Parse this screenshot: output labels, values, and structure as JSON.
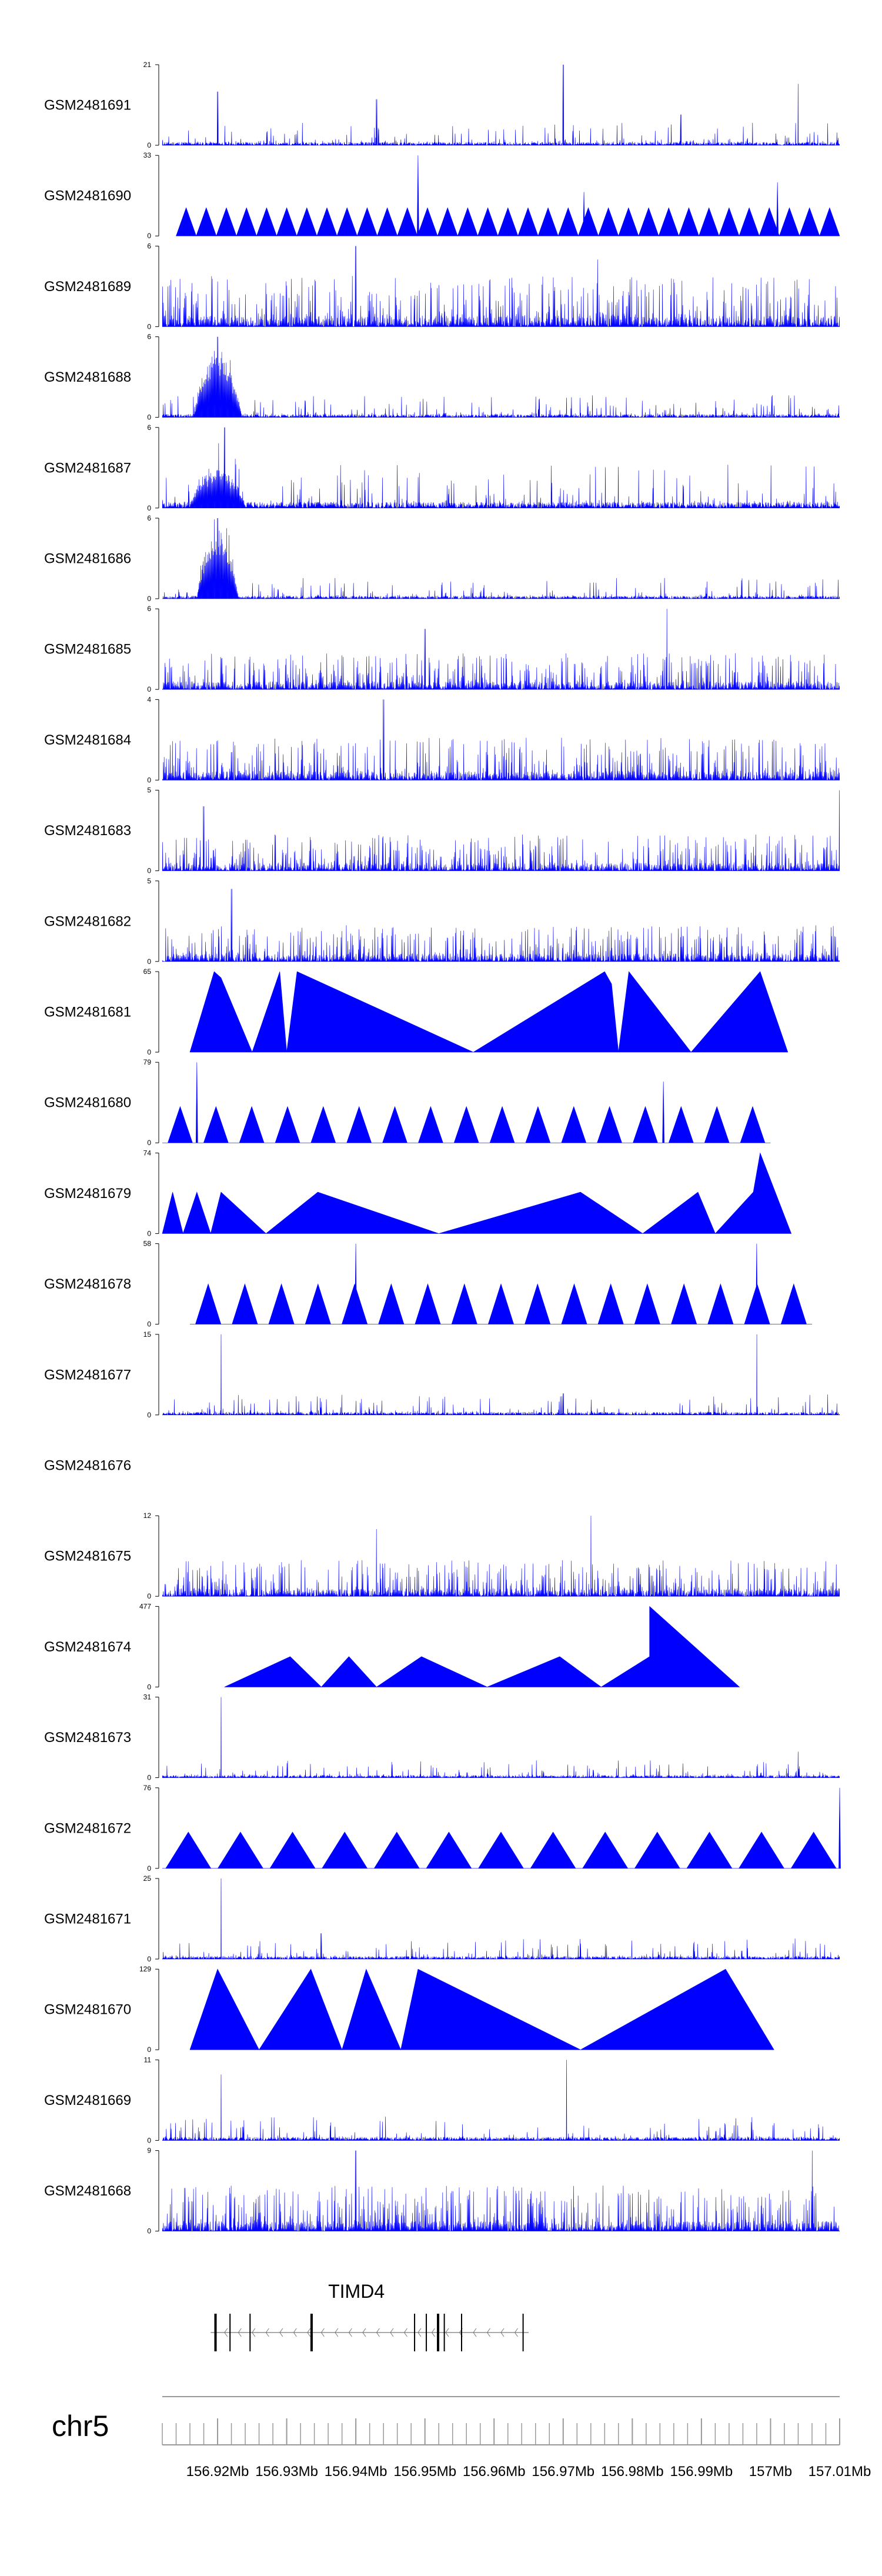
{
  "chart_data": {
    "type": "area",
    "title": "",
    "chromosome": "chr5",
    "x_range_mb": [
      156.912,
      157.01
    ],
    "fill_color": "#0000ff",
    "axis_color": "#000000",
    "tracks": [
      {
        "name": "GSM2481691",
        "ymax": "21",
        "ymin": "0",
        "style": "spiky",
        "seed": 11,
        "level": 0.13,
        "peaks": [
          {
            "x": 156.92,
            "v": 14
          },
          {
            "x": 156.943,
            "v": 12
          },
          {
            "x": 156.97,
            "v": 21
          },
          {
            "x": 156.987,
            "v": 8
          },
          {
            "x": 157.004,
            "v": 16
          }
        ]
      },
      {
        "name": "GSM2481690",
        "ymax": "33",
        "ymin": "0",
        "style": "tri",
        "tri": {
          "start": 156.914,
          "end": 157.01,
          "n": 33,
          "peak": 0.35
        },
        "peaks": [
          {
            "x": 156.949,
            "v": 33
          },
          {
            "x": 156.973,
            "v": 18
          },
          {
            "x": 157.001,
            "v": 22
          }
        ]
      },
      {
        "name": "GSM2481689",
        "ymax": "6",
        "ymin": "0",
        "style": "dense",
        "seed": 23,
        "level": 0.42,
        "peaks": [
          {
            "x": 156.94,
            "v": 6
          },
          {
            "x": 156.975,
            "v": 5
          }
        ]
      },
      {
        "name": "GSM2481688",
        "ymax": "6",
        "ymin": "0",
        "style": "spiky",
        "seed": 37,
        "level": 0.13,
        "hump": {
          "x": 156.92,
          "w": 0.0035,
          "h": 0.8
        },
        "peaks": [
          {
            "x": 156.92,
            "v": 6
          }
        ]
      },
      {
        "name": "GSM2481687",
        "ymax": "6",
        "ymin": "0",
        "style": "spiky",
        "seed": 41,
        "level": 0.25,
        "hump": {
          "x": 156.92,
          "w": 0.004,
          "h": 0.45
        },
        "peaks": [
          {
            "x": 156.921,
            "v": 6
          }
        ]
      },
      {
        "name": "GSM2481686",
        "ymax": "6",
        "ymin": "0",
        "style": "spiky",
        "seed": 53,
        "level": 0.12,
        "hump": {
          "x": 156.92,
          "w": 0.003,
          "h": 0.85
        },
        "peaks": [
          {
            "x": 156.92,
            "v": 6
          }
        ]
      },
      {
        "name": "GSM2481685",
        "ymax": "6",
        "ymin": "0",
        "style": "dense",
        "seed": 59,
        "level": 0.3,
        "peaks": [
          {
            "x": 156.985,
            "v": 6
          },
          {
            "x": 156.95,
            "v": 4.5
          }
        ]
      },
      {
        "name": "GSM2481684",
        "ymax": "4",
        "ymin": "0",
        "style": "dense",
        "seed": 61,
        "level": 0.35,
        "peaks": [
          {
            "x": 156.944,
            "v": 4
          }
        ]
      },
      {
        "name": "GSM2481683",
        "ymax": "5",
        "ymin": "0",
        "style": "dense",
        "seed": 67,
        "level": 0.3,
        "peaks": [
          {
            "x": 157.01,
            "v": 5
          },
          {
            "x": 156.918,
            "v": 4
          }
        ]
      },
      {
        "name": "GSM2481682",
        "ymax": "5",
        "ymin": "0",
        "style": "dense",
        "seed": 71,
        "level": 0.3,
        "peaks": [
          {
            "x": 156.922,
            "v": 4.5
          }
        ]
      },
      {
        "name": "GSM2481681",
        "ymax": "65",
        "ymin": "0",
        "style": "poly",
        "points": [
          [
            156.916,
            0
          ],
          [
            156.9195,
            65
          ],
          [
            156.9205,
            60
          ],
          [
            156.925,
            0
          ],
          [
            156.929,
            65
          ],
          [
            156.93,
            0
          ],
          [
            156.9315,
            65
          ],
          [
            156.957,
            0
          ],
          [
            156.976,
            65
          ],
          [
            156.977,
            55
          ],
          [
            156.978,
            0
          ],
          [
            156.9795,
            65
          ],
          [
            156.9885,
            0
          ],
          [
            156.9985,
            65
          ],
          [
            157.0025,
            0
          ]
        ]
      },
      {
        "name": "GSM2481680",
        "ymax": "79",
        "ymin": "0",
        "style": "tri",
        "tri": {
          "start": 156.912,
          "end": 157.0,
          "n": 17,
          "peak": 0.45,
          "gap": 0.0008
        },
        "peaks": [
          {
            "x": 156.917,
            "v": 79
          },
          {
            "x": 156.9845,
            "v": 60
          }
        ]
      },
      {
        "name": "GSM2481679",
        "ymax": "74",
        "ymin": "0",
        "style": "poly",
        "points": [
          [
            156.912,
            0
          ],
          [
            156.9135,
            38
          ],
          [
            156.915,
            0
          ],
          [
            156.917,
            38
          ],
          [
            156.919,
            0
          ],
          [
            156.9205,
            38
          ],
          [
            156.927,
            0
          ],
          [
            156.9345,
            38
          ],
          [
            156.952,
            0
          ],
          [
            156.9725,
            38
          ],
          [
            156.9815,
            0
          ],
          [
            156.9895,
            38
          ],
          [
            156.992,
            0
          ],
          [
            156.9975,
            38
          ],
          [
            156.9985,
            74
          ],
          [
            157.003,
            0
          ]
        ]
      },
      {
        "name": "GSM2481678",
        "ymax": "58",
        "ymin": "0",
        "style": "tri",
        "tri": {
          "start": 156.916,
          "end": 157.006,
          "n": 17,
          "peak": 0.5,
          "gap": 0.0008
        },
        "peaks": [
          {
            "x": 156.94,
            "v": 58
          },
          {
            "x": 156.998,
            "v": 58
          }
        ]
      },
      {
        "name": "GSM2481677",
        "ymax": "15",
        "ymin": "0",
        "style": "spiky",
        "seed": 83,
        "level": 0.12,
        "peaks": [
          {
            "x": 156.9205,
            "v": 15
          },
          {
            "x": 156.998,
            "v": 15
          },
          {
            "x": 156.97,
            "v": 4
          }
        ]
      },
      {
        "name": "GSM2481676",
        "ymax": "",
        "ymin": "",
        "style": "empty"
      },
      {
        "name": "GSM2481675",
        "ymax": "12",
        "ymin": "0",
        "style": "dense",
        "seed": 89,
        "level": 0.3,
        "peaks": [
          {
            "x": 156.974,
            "v": 12
          },
          {
            "x": 156.943,
            "v": 10
          }
        ]
      },
      {
        "name": "GSM2481674",
        "ymax": "477",
        "ymin": "0",
        "style": "poly",
        "points": [
          [
            156.921,
            0
          ],
          [
            156.9305,
            180
          ],
          [
            156.935,
            0
          ],
          [
            156.939,
            180
          ],
          [
            156.943,
            0
          ],
          [
            156.9495,
            180
          ],
          [
            156.959,
            0
          ],
          [
            156.9695,
            180
          ],
          [
            156.9755,
            0
          ],
          [
            156.9825,
            180
          ],
          [
            156.9825,
            477
          ],
          [
            156.9955,
            0
          ]
        ]
      },
      {
        "name": "GSM2481673",
        "ymax": "31",
        "ymin": "0",
        "style": "spiky",
        "seed": 97,
        "level": 0.1,
        "peaks": [
          {
            "x": 156.9205,
            "v": 31
          },
          {
            "x": 157.004,
            "v": 10
          },
          {
            "x": 156.999,
            "v": 6
          }
        ]
      },
      {
        "name": "GSM2481672",
        "ymax": "76",
        "ymin": "0",
        "style": "tri",
        "tri": {
          "start": 156.912,
          "end": 157.01,
          "n": 13,
          "peak": 0.45,
          "gap": 0.0005
        },
        "peaks": [
          {
            "x": 157.01,
            "v": 76
          }
        ]
      },
      {
        "name": "GSM2481671",
        "ymax": "25",
        "ymin": "0",
        "style": "spiky",
        "seed": 101,
        "level": 0.12,
        "peaks": [
          {
            "x": 156.9205,
            "v": 25
          },
          {
            "x": 156.935,
            "v": 8
          }
        ]
      },
      {
        "name": "GSM2481670",
        "ymax": "129",
        "ymin": "0",
        "style": "poly",
        "points": [
          [
            156.916,
            0
          ],
          [
            156.92,
            129
          ],
          [
            156.926,
            0
          ],
          [
            156.9335,
            129
          ],
          [
            156.938,
            0
          ],
          [
            156.9415,
            129
          ],
          [
            156.9465,
            0
          ],
          [
            156.949,
            129
          ],
          [
            156.9725,
            0
          ],
          [
            156.9935,
            129
          ],
          [
            157.0005,
            0
          ]
        ]
      },
      {
        "name": "GSM2481669",
        "ymax": "11",
        "ymin": "0",
        "style": "spiky",
        "seed": 107,
        "level": 0.14,
        "peaks": [
          {
            "x": 156.9205,
            "v": 9
          },
          {
            "x": 156.9705,
            "v": 11
          }
        ]
      },
      {
        "name": "GSM2481668",
        "ymax": "9",
        "ymin": "0",
        "style": "dense",
        "seed": 113,
        "level": 0.38,
        "peaks": [
          {
            "x": 156.94,
            "v": 9
          },
          {
            "x": 157.006,
            "v": 9
          }
        ]
      }
    ],
    "gene": {
      "name": "TIMD4",
      "strand": "-",
      "start_mb": 156.919,
      "end_mb": 156.965,
      "exons_mb": [
        156.9197,
        156.9218,
        156.9247,
        156.9336,
        156.9485,
        156.9502,
        156.9519,
        156.9528,
        156.9553,
        156.9642
      ]
    },
    "axis": {
      "tick_labels": [
        "156.92Mb",
        "156.93Mb",
        "156.94Mb",
        "156.95Mb",
        "156.96Mb",
        "156.97Mb",
        "156.98Mb",
        "156.99Mb",
        "157Mb",
        "157.01Mb"
      ],
      "tick_values": [
        156.92,
        156.93,
        156.94,
        156.95,
        156.96,
        156.97,
        156.98,
        156.99,
        157.0,
        157.01
      ],
      "minor_step_mb": 0.002
    }
  }
}
